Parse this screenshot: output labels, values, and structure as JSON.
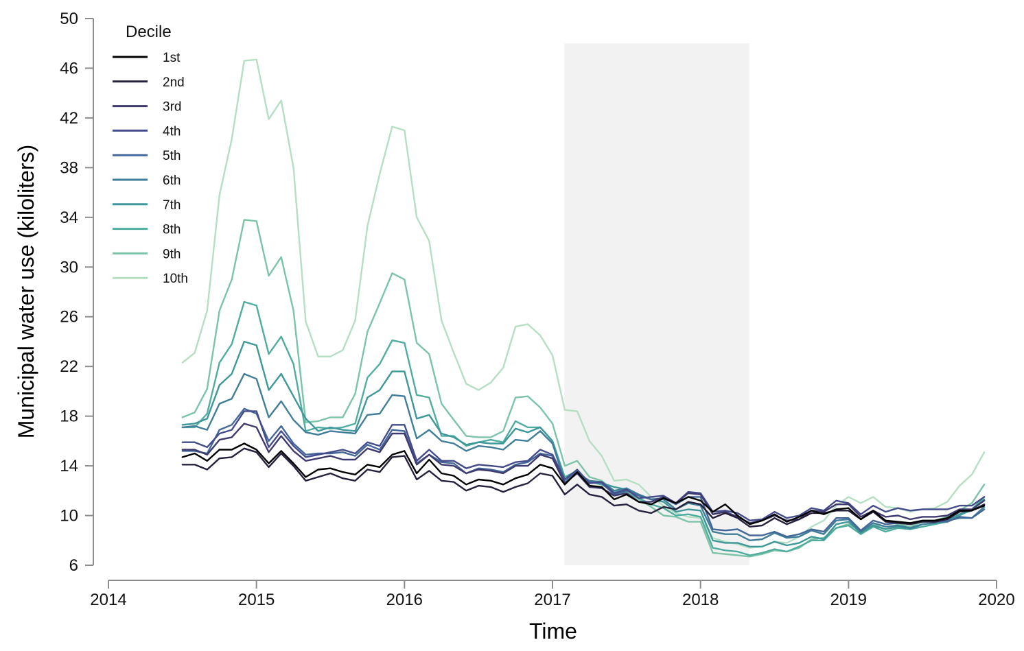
{
  "chart_data": {
    "type": "line",
    "title": "",
    "xlabel": "Time",
    "ylabel": "Municipal water use (kiloliters)",
    "xlim": [
      2014,
      2020
    ],
    "ylim": [
      6,
      50
    ],
    "x_ticks": [
      "2014",
      "2015",
      "2016",
      "2017",
      "2018",
      "2019",
      "2020"
    ],
    "y_ticks": [
      "6",
      "10",
      "14",
      "18",
      "22",
      "26",
      "30",
      "34",
      "38",
      "42",
      "46",
      "50"
    ],
    "grid": false,
    "legend": {
      "title": "Decile",
      "position": "top-left"
    },
    "shaded_region": {
      "x_start": 2017.08,
      "x_end": 2018.33,
      "y_start": 6,
      "y_end": 48,
      "color": "#f2f2f2"
    },
    "x": [
      2014.5,
      2014.583,
      2014.667,
      2014.75,
      2014.833,
      2014.917,
      2015.0,
      2015.083,
      2015.167,
      2015.25,
      2015.333,
      2015.417,
      2015.5,
      2015.583,
      2015.667,
      2015.75,
      2015.833,
      2015.917,
      2016.0,
      2016.083,
      2016.167,
      2016.25,
      2016.333,
      2016.417,
      2016.5,
      2016.583,
      2016.667,
      2016.75,
      2016.833,
      2016.917,
      2017.0,
      2017.083,
      2017.167,
      2017.25,
      2017.333,
      2017.417,
      2017.5,
      2017.583,
      2017.667,
      2017.75,
      2017.833,
      2017.917,
      2018.0,
      2018.083,
      2018.167,
      2018.25,
      2018.333,
      2018.417,
      2018.5,
      2018.583,
      2018.667,
      2018.75,
      2018.833,
      2018.917,
      2019.0,
      2019.083,
      2019.167,
      2019.25,
      2019.333,
      2019.417,
      2019.5,
      2019.583,
      2019.667,
      2019.75,
      2019.833,
      2019.917
    ],
    "series": [
      {
        "name": "1st",
        "color": "#000000",
        "values": [
          14.7,
          15.0,
          14.4,
          15.3,
          15.3,
          15.8,
          15.3,
          14.2,
          15.2,
          14.2,
          13.1,
          13.7,
          13.8,
          13.5,
          13.3,
          14.1,
          13.9,
          14.9,
          15.2,
          13.4,
          14.5,
          13.4,
          13.2,
          12.5,
          12.9,
          12.8,
          12.5,
          13.0,
          13.3,
          14.1,
          13.8,
          12.5,
          13.5,
          12.4,
          12.3,
          11.3,
          11.7,
          11.1,
          10.9,
          11.4,
          11.0,
          11.5,
          11.2,
          10.3,
          10.9,
          10.0,
          9.3,
          9.6,
          10.1,
          9.5,
          9.9,
          10.4,
          10.1,
          10.5,
          10.6,
          9.7,
          10.4,
          9.6,
          9.5,
          9.4,
          9.6,
          9.6,
          9.8,
          10.4,
          10.4,
          10.8
        ]
      },
      {
        "name": "2nd",
        "color": "#26203c",
        "values": [
          14.1,
          14.1,
          13.7,
          14.6,
          14.7,
          15.4,
          15.1,
          13.9,
          15.0,
          14.0,
          12.8,
          13.1,
          13.4,
          13.0,
          12.8,
          13.7,
          13.5,
          14.7,
          14.8,
          12.9,
          13.6,
          12.8,
          12.7,
          12.0,
          12.4,
          12.3,
          11.9,
          12.3,
          12.6,
          13.4,
          13.2,
          11.7,
          12.5,
          11.7,
          11.5,
          10.8,
          10.9,
          10.4,
          10.2,
          10.7,
          10.5,
          11.1,
          10.9,
          9.8,
          10.2,
          9.8,
          9.1,
          9.2,
          9.8,
          9.3,
          9.7,
          10.2,
          10.2,
          10.4,
          10.4,
          9.7,
          10.3,
          9.5,
          9.4,
          9.3,
          9.5,
          9.5,
          9.7,
          10.3,
          10.4,
          10.9
        ]
      },
      {
        "name": "3rd",
        "color": "#3e3a6e",
        "values": [
          15.3,
          15.3,
          14.9,
          16.1,
          16.3,
          17.4,
          17.1,
          15.1,
          16.4,
          15.2,
          14.4,
          14.6,
          14.8,
          14.5,
          14.5,
          15.4,
          15.1,
          16.6,
          16.6,
          14.1,
          14.9,
          14.1,
          14.0,
          13.4,
          13.7,
          13.6,
          13.4,
          14.0,
          14.0,
          14.9,
          14.6,
          12.6,
          13.4,
          12.3,
          12.2,
          11.6,
          11.8,
          11.1,
          11.1,
          11.5,
          11.0,
          11.8,
          11.7,
          10.1,
          10.3,
          9.9,
          9.4,
          9.6,
          10.0,
          9.6,
          9.7,
          10.4,
          10.3,
          10.9,
          10.9,
          9.9,
          10.4,
          9.9,
          10.0,
          9.7,
          9.9,
          9.9,
          10.0,
          10.5,
          10.5,
          11.2
        ]
      },
      {
        "name": "4th",
        "color": "#444c8c",
        "values": [
          15.9,
          15.9,
          15.5,
          16.6,
          16.9,
          18.4,
          18.4,
          15.5,
          16.8,
          15.6,
          14.7,
          14.9,
          15.1,
          15.3,
          15.0,
          15.9,
          15.6,
          17.3,
          17.3,
          14.4,
          15.3,
          14.4,
          14.4,
          13.8,
          14.1,
          14.0,
          13.9,
          14.3,
          14.4,
          15.3,
          14.9,
          12.9,
          13.7,
          12.6,
          12.7,
          11.8,
          12.1,
          11.4,
          11.5,
          11.6,
          11.0,
          11.9,
          11.8,
          10.3,
          10.4,
          10.2,
          9.6,
          9.7,
          10.3,
          9.8,
          10.0,
          10.6,
          10.4,
          11.2,
          11.0,
          10.1,
          10.8,
          10.3,
          10.6,
          10.4,
          10.5,
          10.5,
          10.5,
          10.8,
          10.8,
          11.5
        ]
      },
      {
        "name": "5th",
        "color": "#44679a",
        "values": [
          15.2,
          15.2,
          15.0,
          16.9,
          17.3,
          18.6,
          18.2,
          16.0,
          17.2,
          15.8,
          14.9,
          15.0,
          15.0,
          15.1,
          14.8,
          15.7,
          15.3,
          16.9,
          16.8,
          14.2,
          14.9,
          14.3,
          14.2,
          13.4,
          13.8,
          13.7,
          13.5,
          14.1,
          14.3,
          15.0,
          14.8,
          12.9,
          13.5,
          12.7,
          12.6,
          11.7,
          12.0,
          11.6,
          11.3,
          11.4,
          10.9,
          11.5,
          11.5,
          8.9,
          8.8,
          8.9,
          8.4,
          8.4,
          8.7,
          8.3,
          8.5,
          8.9,
          8.7,
          9.8,
          9.8,
          8.8,
          9.6,
          9.3,
          9.4,
          9.4,
          9.5,
          9.5,
          9.5,
          9.9,
          9.8,
          10.5
        ]
      },
      {
        "name": "6th",
        "color": "#3f7d98",
        "values": [
          17.1,
          17.2,
          16.9,
          19.0,
          19.4,
          21.4,
          21.0,
          17.9,
          19.2,
          17.7,
          16.7,
          16.5,
          16.8,
          16.7,
          16.6,
          18.1,
          18.2,
          19.7,
          19.6,
          16.2,
          16.9,
          16.0,
          15.8,
          15.2,
          15.6,
          15.5,
          15.3,
          16.1,
          16.0,
          16.8,
          15.8,
          12.7,
          13.4,
          12.8,
          12.7,
          12.0,
          12.2,
          11.7,
          11.3,
          11.3,
          10.5,
          11.0,
          10.8,
          8.7,
          8.5,
          8.5,
          8.0,
          8.1,
          8.6,
          8.2,
          8.3,
          8.8,
          8.5,
          9.6,
          9.7,
          8.7,
          9.4,
          9.1,
          9.2,
          9.0,
          9.3,
          9.4,
          9.6,
          9.8,
          9.8,
          10.7
        ]
      },
      {
        "name": "7th",
        "color": "#3e9798",
        "values": [
          17.3,
          17.4,
          17.8,
          20.5,
          21.4,
          24.0,
          23.7,
          20.1,
          21.4,
          19.6,
          17.8,
          16.8,
          17.1,
          16.9,
          16.8,
          19.5,
          20.1,
          21.6,
          21.6,
          17.8,
          18.1,
          16.6,
          16.3,
          15.7,
          15.9,
          15.8,
          15.8,
          17.0,
          16.7,
          17.1,
          16.0,
          12.9,
          13.4,
          12.8,
          12.6,
          12.3,
          12.1,
          11.7,
          11.3,
          11.1,
          10.3,
          10.5,
          10.4,
          8.0,
          7.8,
          7.8,
          7.5,
          7.5,
          7.9,
          7.6,
          7.8,
          8.3,
          8.1,
          9.3,
          9.5,
          8.6,
          9.2,
          8.9,
          9.1,
          8.9,
          9.3,
          9.4,
          9.6,
          10.1,
          10.4,
          11.3
        ]
      },
      {
        "name": "8th",
        "color": "#4fad9f",
        "values": [
          17.1,
          17.1,
          18.2,
          22.3,
          23.8,
          27.2,
          26.9,
          23.0,
          24.4,
          22.2,
          16.8,
          17.1,
          17.0,
          17.1,
          17.4,
          21.1,
          22.2,
          24.1,
          23.9,
          19.7,
          19.5,
          16.4,
          16.4,
          15.6,
          15.9,
          16.1,
          15.9,
          17.6,
          17.1,
          17.1,
          16.0,
          13.1,
          13.6,
          12.7,
          12.5,
          11.9,
          11.8,
          11.4,
          10.9,
          10.6,
          10.0,
          10.1,
          9.9,
          7.4,
          7.2,
          7.1,
          6.8,
          7.0,
          7.3,
          7.1,
          7.5,
          8.0,
          8.0,
          9.0,
          9.2,
          8.5,
          9.1,
          8.7,
          9.0,
          8.9,
          9.1,
          9.3,
          9.5,
          10.0,
          10.5,
          11.5
        ]
      },
      {
        "name": "9th",
        "color": "#7cc4a7",
        "values": [
          17.9,
          18.3,
          20.2,
          26.5,
          29.0,
          33.8,
          33.7,
          29.3,
          30.8,
          26.5,
          17.5,
          17.6,
          17.9,
          17.9,
          19.8,
          24.8,
          27.1,
          29.5,
          29.0,
          23.9,
          23.0,
          19.0,
          17.7,
          16.4,
          16.3,
          16.3,
          16.8,
          19.5,
          19.6,
          18.7,
          17.4,
          14.0,
          14.4,
          13.1,
          12.8,
          12.0,
          11.9,
          11.3,
          10.7,
          10.0,
          9.9,
          9.5,
          9.5,
          7.0,
          6.9,
          6.8,
          6.7,
          6.9,
          7.2,
          7.1,
          7.4,
          8.1,
          8.2,
          9.0,
          9.3,
          8.8,
          9.3,
          8.9,
          9.3,
          9.1,
          9.5,
          9.6,
          9.9,
          10.4,
          11.0,
          12.5
        ]
      },
      {
        "name": "10th",
        "color": "#b5dfc3",
        "values": [
          22.3,
          23.1,
          26.5,
          35.8,
          40.3,
          46.6,
          46.7,
          41.9,
          43.4,
          38.0,
          25.6,
          22.8,
          22.8,
          23.3,
          25.7,
          33.3,
          37.5,
          41.3,
          41.0,
          34.0,
          32.1,
          25.7,
          23.1,
          20.6,
          20.1,
          20.7,
          21.9,
          25.2,
          25.4,
          24.5,
          22.9,
          18.5,
          18.4,
          16.0,
          14.8,
          12.8,
          12.9,
          12.5,
          11.5,
          10.8,
          10.2,
          9.9,
          9.8,
          8.2,
          7.9,
          7.7,
          7.4,
          7.5,
          7.9,
          7.8,
          8.3,
          9.1,
          9.6,
          10.8,
          11.5,
          11.0,
          11.5,
          10.7,
          10.6,
          10.3,
          10.5,
          10.6,
          11.1,
          12.4,
          13.3,
          15.1
        ]
      }
    ]
  }
}
